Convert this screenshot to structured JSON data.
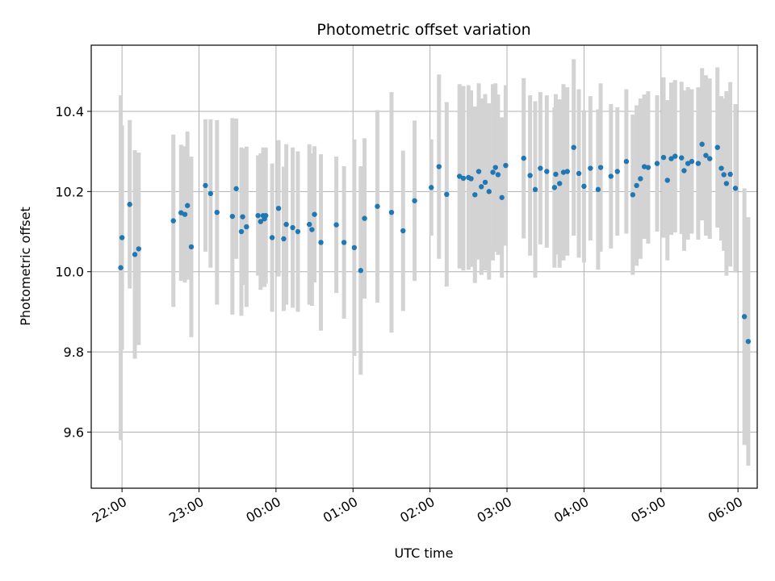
{
  "chart_data": {
    "type": "scatter",
    "title": "Photometric offset variation",
    "xlabel": "UTC time",
    "ylabel": "Photometric offset",
    "grid": true,
    "xlim_hours": [
      21.6,
      30.25
    ],
    "ylim": [
      9.46,
      10.565
    ],
    "x_ticks": [
      {
        "h": 22,
        "label": "22:00"
      },
      {
        "h": 23,
        "label": "23:00"
      },
      {
        "h": 24,
        "label": "00:00"
      },
      {
        "h": 25,
        "label": "01:00"
      },
      {
        "h": 26,
        "label": "02:00"
      },
      {
        "h": 27,
        "label": "03:00"
      },
      {
        "h": 28,
        "label": "04:00"
      },
      {
        "h": 29,
        "label": "05:00"
      },
      {
        "h": 30,
        "label": "06:00"
      }
    ],
    "y_ticks": [
      {
        "v": 9.6,
        "label": "9.6"
      },
      {
        "v": 9.8,
        "label": "9.8"
      },
      {
        "v": 10.0,
        "label": "10.0"
      },
      {
        "v": 10.2,
        "label": "10.2"
      },
      {
        "v": 10.4,
        "label": "10.4"
      }
    ],
    "colors": {
      "marker": "#1f77b4",
      "errorbar": "#d3d3d3",
      "grid": "#b0b0b0"
    },
    "series": [
      {
        "x_time": [
          "21:59",
          "22:00",
          "22:06",
          "22:10",
          "22:13",
          "22:40",
          "22:46",
          "22:49",
          "22:51",
          "22:54",
          "23:05",
          "23:09",
          "23:14",
          "23:26",
          "23:29",
          "23:33",
          "23:34",
          "23:37",
          "23:46",
          "23:48",
          "23:50",
          "23:51",
          "23:52",
          "23:57",
          "24:02",
          "24:06",
          "24:08",
          "24:13",
          "24:17",
          "24:26",
          "24:28",
          "24:30",
          "24:35",
          "24:47",
          "24:53",
          "25:01",
          "25:06",
          "25:09",
          "25:19",
          "25:30",
          "25:39",
          "25:48",
          "26:01",
          "26:07",
          "26:13",
          "26:23",
          "26:26",
          "26:30",
          "26:32",
          "26:35",
          "26:38",
          "26:40",
          "26:43",
          "26:46",
          "26:49",
          "26:51",
          "26:53",
          "26:56",
          "26:59",
          "27:13",
          "27:18",
          "27:22",
          "27:26",
          "27:31",
          "27:37",
          "27:38",
          "27:41",
          "27:44",
          "27:47",
          "27:52",
          "27:56",
          "28:00",
          "28:05",
          "28:11",
          "28:13",
          "28:21",
          "28:26",
          "28:33",
          "28:38",
          "28:41",
          "28:44",
          "28:47",
          "28:50",
          "28:57",
          "29:02",
          "29:05",
          "29:08",
          "29:11",
          "29:16",
          "29:18",
          "29:21",
          "29:24",
          "29:29",
          "29:32",
          "29:35",
          "29:38",
          "29:44",
          "29:47",
          "29:49",
          "29:51",
          "29:54",
          "29:58",
          "30:05",
          "30:08"
        ],
        "y": [
          10.01,
          10.085,
          10.168,
          10.043,
          10.057,
          10.127,
          10.147,
          10.143,
          10.165,
          10.062,
          10.215,
          10.195,
          10.148,
          10.138,
          10.207,
          10.1,
          10.137,
          10.112,
          10.14,
          10.125,
          10.14,
          10.132,
          10.14,
          10.085,
          10.158,
          10.082,
          10.118,
          10.11,
          10.1,
          10.118,
          10.105,
          10.143,
          10.073,
          10.117,
          10.073,
          10.06,
          10.003,
          10.133,
          10.163,
          10.148,
          10.102,
          10.177,
          10.21,
          10.262,
          10.193,
          10.238,
          10.233,
          10.235,
          10.232,
          10.192,
          10.25,
          10.212,
          10.223,
          10.2,
          10.248,
          10.26,
          10.242,
          10.185,
          10.265,
          10.283,
          10.24,
          10.205,
          10.258,
          10.25,
          10.21,
          10.243,
          10.22,
          10.248,
          10.25,
          10.31,
          10.245,
          10.213,
          10.258,
          10.205,
          10.26,
          10.238,
          10.25,
          10.275,
          10.192,
          10.215,
          10.232,
          10.262,
          10.26,
          10.27,
          10.285,
          10.228,
          10.282,
          10.288,
          10.284,
          10.252,
          10.27,
          10.275,
          10.27,
          10.318,
          10.29,
          10.282,
          10.31,
          10.258,
          10.242,
          10.22,
          10.243,
          10.208,
          9.888,
          9.826
        ],
        "y_err": [
          0.43,
          0.28,
          0.21,
          0.26,
          0.24,
          0.215,
          0.17,
          0.17,
          0.185,
          0.225,
          0.165,
          0.185,
          0.23,
          0.245,
          0.175,
          0.21,
          0.17,
          0.2,
          0.15,
          0.17,
          0.17,
          0.17,
          0.17,
          0.185,
          0.17,
          0.18,
          0.2,
          0.2,
          0.2,
          0.2,
          0.19,
          0.17,
          0.22,
          0.17,
          0.19,
          0.27,
          0.26,
          0.2,
          0.24,
          0.3,
          0.2,
          0.2,
          0.12,
          0.23,
          0.23,
          0.23,
          0.23,
          0.23,
          0.22,
          0.22,
          0.22,
          0.22,
          0.22,
          0.22,
          0.22,
          0.21,
          0.2,
          0.2,
          0.2,
          0.2,
          0.2,
          0.22,
          0.19,
          0.19,
          0.2,
          0.2,
          0.21,
          0.22,
          0.21,
          0.22,
          0.21,
          0.19,
          0.18,
          0.2,
          0.21,
          0.18,
          0.16,
          0.18,
          0.2,
          0.2,
          0.2,
          0.18,
          0.19,
          0.17,
          0.2,
          0.2,
          0.19,
          0.19,
          0.19,
          0.2,
          0.19,
          0.18,
          0.19,
          0.19,
          0.2,
          0.2,
          0.2,
          0.18,
          0.19,
          0.23,
          0.23,
          0.21,
          0.32,
          0.31
        ]
      }
    ]
  }
}
